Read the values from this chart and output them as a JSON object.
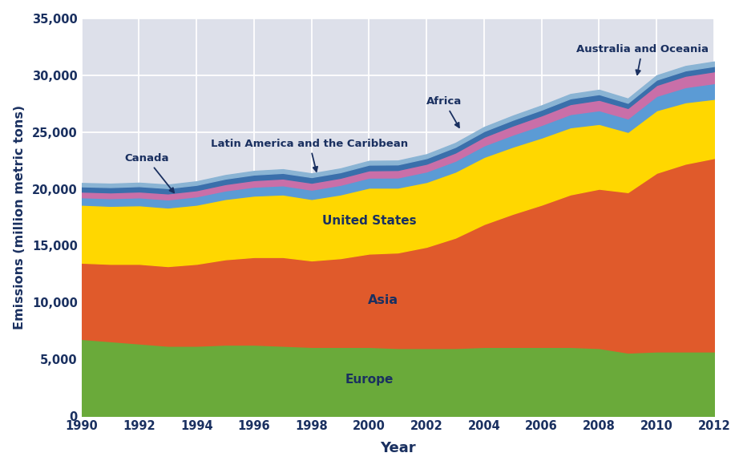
{
  "years": [
    1990,
    1991,
    1992,
    1993,
    1994,
    1995,
    1996,
    1997,
    1998,
    1999,
    2000,
    2001,
    2002,
    2003,
    2004,
    2005,
    2006,
    2007,
    2008,
    2009,
    2010,
    2011,
    2012
  ],
  "europe": [
    6800,
    6600,
    6400,
    6200,
    6200,
    6300,
    6300,
    6200,
    6100,
    6100,
    6100,
    6000,
    6000,
    6000,
    6100,
    6100,
    6100,
    6100,
    6000,
    5600,
    5700,
    5700,
    5700
  ],
  "asia": [
    6700,
    6800,
    7000,
    7000,
    7200,
    7500,
    7700,
    7800,
    7600,
    7800,
    8200,
    8400,
    8900,
    9700,
    10800,
    11700,
    12500,
    13400,
    14000,
    14100,
    15700,
    16500,
    17000
  ],
  "united_states": [
    5100,
    5100,
    5150,
    5150,
    5200,
    5300,
    5400,
    5500,
    5400,
    5600,
    5800,
    5700,
    5700,
    5800,
    5900,
    5900,
    5900,
    5900,
    5700,
    5300,
    5500,
    5400,
    5200
  ],
  "latin_america": [
    650,
    670,
    690,
    710,
    730,
    750,
    780,
    800,
    820,
    840,
    880,
    890,
    920,
    960,
    1010,
    1060,
    1110,
    1160,
    1200,
    1180,
    1260,
    1330,
    1380
  ],
  "africa": [
    500,
    510,
    520,
    530,
    540,
    560,
    580,
    600,
    610,
    620,
    640,
    660,
    680,
    720,
    760,
    800,
    840,
    880,
    920,
    920,
    960,
    1000,
    1040
  ],
  "canada": [
    460,
    465,
    468,
    470,
    475,
    480,
    490,
    495,
    495,
    495,
    500,
    490,
    495,
    500,
    505,
    505,
    505,
    505,
    495,
    455,
    470,
    470,
    465
  ],
  "australia": [
    300,
    305,
    308,
    310,
    314,
    318,
    322,
    326,
    330,
    334,
    338,
    342,
    346,
    354,
    362,
    370,
    378,
    386,
    390,
    378,
    386,
    394,
    402
  ],
  "colors": {
    "europe": "#6aaa3a",
    "asia": "#e05a2b",
    "united_states": "#ffd700",
    "latin_america": "#5b9bd5",
    "africa": "#c96fa8",
    "canada": "#3a6fab",
    "australia": "#8ab4d4"
  },
  "background_color": "#dde0ea",
  "ylabel": "Emissions (million metric tons)",
  "xlabel": "Year",
  "ylim": [
    0,
    35000
  ],
  "yticks": [
    0,
    5000,
    10000,
    15000,
    20000,
    25000,
    30000,
    35000
  ],
  "annot_color": "#1a3060"
}
